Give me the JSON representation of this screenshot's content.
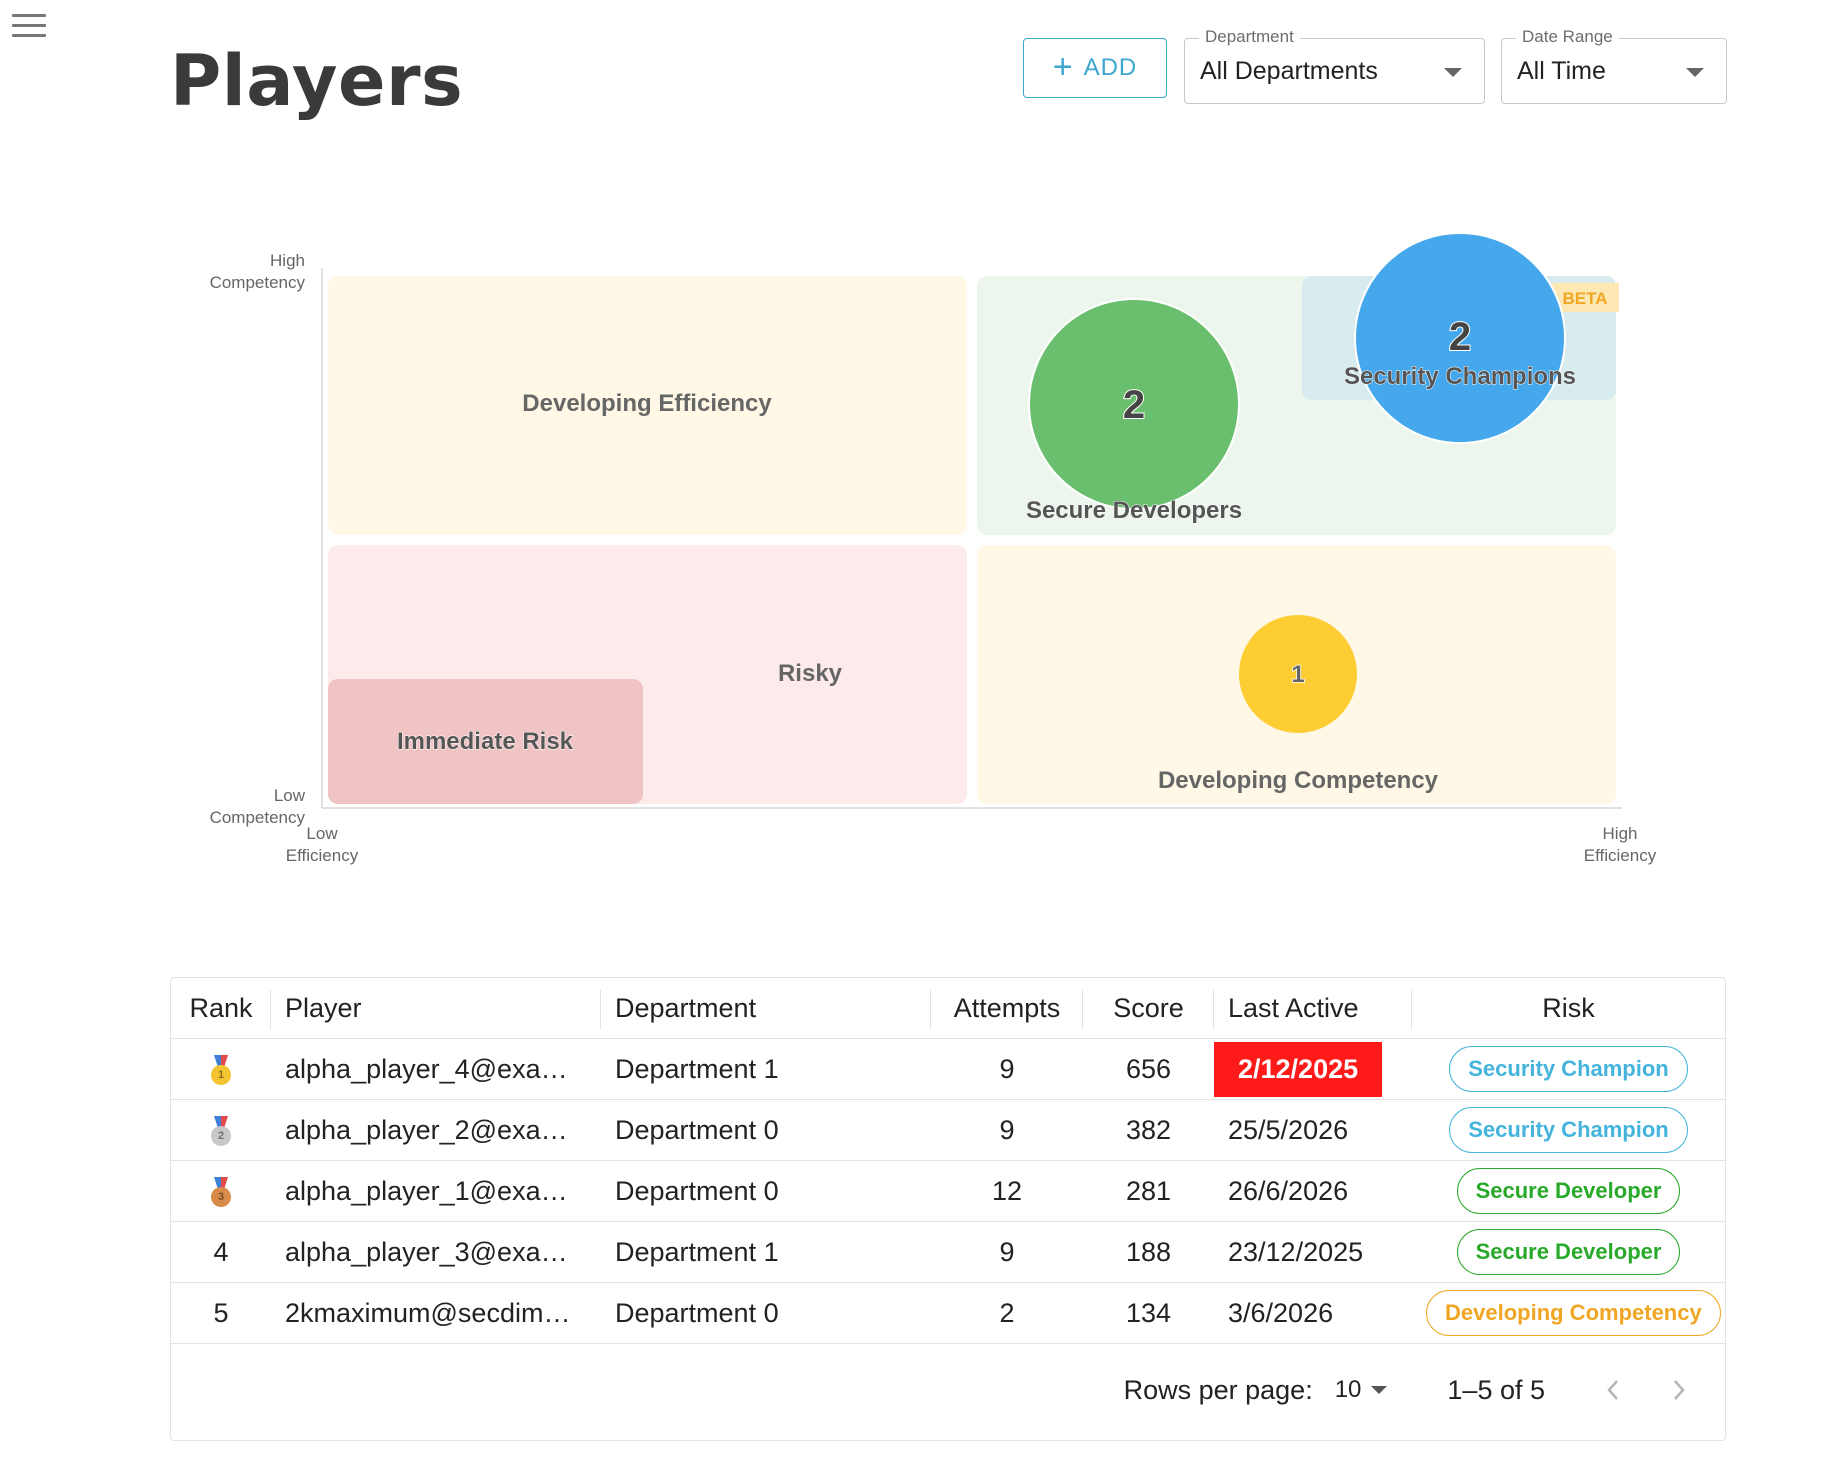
{
  "header": {
    "title": "Players",
    "add_label": "ADD",
    "department": {
      "legend": "Department",
      "value": "All Departments"
    },
    "date_range": {
      "legend": "Date Range",
      "value": "All Time"
    }
  },
  "quadrant": {
    "y_axis": {
      "high": [
        "High",
        "Competency"
      ],
      "low": [
        "Low",
        "Competency"
      ]
    },
    "x_axis": {
      "low": [
        "Low",
        "Efficiency"
      ],
      "high": [
        "High",
        "Efficiency"
      ]
    },
    "zones": {
      "developing_efficiency": "Developing Efficiency",
      "secure_developers": "Secure Developers",
      "security_champions": "Security Champions",
      "beta": "BETA",
      "risky": "Risky",
      "immediate_risk": "Immediate Risk",
      "developing_competency": "Developing Competency"
    },
    "bubbles": {
      "secure_developers": 2,
      "security_champions": 2,
      "developing_competency": 1
    },
    "colors": {
      "secure": "#6abf6e",
      "champion": "#45a8ec",
      "developing": "#fecd34"
    }
  },
  "table": {
    "columns": [
      "Rank",
      "Player",
      "Department",
      "Attempts",
      "Score",
      "Last Active",
      "Risk"
    ],
    "rows": [
      {
        "rank": "",
        "medal": "gold",
        "medal_num": "1",
        "player": "alpha_player_4@exa…",
        "department": "Department 1",
        "attempts": "9",
        "score": "656",
        "last_active": "2/12/2025",
        "highlight": true,
        "risk": "Security Champion",
        "risk_kind": "champ"
      },
      {
        "rank": "",
        "medal": "silver",
        "medal_num": "2",
        "player": "alpha_player_2@exa…",
        "department": "Department 0",
        "attempts": "9",
        "score": "382",
        "last_active": "25/5/2026",
        "highlight": false,
        "risk": "Security Champion",
        "risk_kind": "champ"
      },
      {
        "rank": "",
        "medal": "bronze",
        "medal_num": "3",
        "player": "alpha_player_1@exa…",
        "department": "Department 0",
        "attempts": "12",
        "score": "281",
        "last_active": "26/6/2026",
        "highlight": false,
        "risk": "Secure Developer",
        "risk_kind": "secure"
      },
      {
        "rank": "4",
        "medal": "",
        "medal_num": "",
        "player": "alpha_player_3@exa…",
        "department": "Department 1",
        "attempts": "9",
        "score": "188",
        "last_active": "23/12/2025",
        "highlight": false,
        "risk": "Secure Developer",
        "risk_kind": "secure"
      },
      {
        "rank": "5",
        "medal": "",
        "medal_num": "",
        "player": "2kmaximum@secdim…",
        "department": "Department 0",
        "attempts": "2",
        "score": "134",
        "last_active": "3/6/2026",
        "highlight": false,
        "risk": "Developing Competency",
        "risk_kind": "devcomp"
      }
    ],
    "pagination": {
      "rows_per_page_label": "Rows per page:",
      "rows_per_page": "10",
      "range": "1–5 of 5"
    }
  }
}
